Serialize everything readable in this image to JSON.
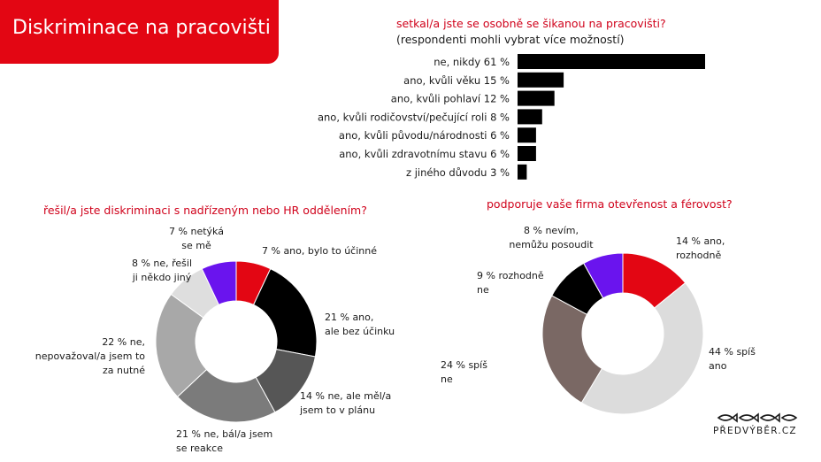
{
  "page": {
    "title": "Diskriminace na pracovišti"
  },
  "chart_data": [
    {
      "type": "bar",
      "orientation": "horizontal",
      "title": "setkal/a jste se osobně se šikanou na pracovišti?",
      "subtitle": "(respondenti mohli vybrat více možností)",
      "categories": [
        "ne, nikdy",
        "ano, kvůli věku",
        "ano, kvůli pohlaví",
        "ano, kvůli rodičovství/pečující roli",
        "ano, kvůli původu/národnosti",
        "ano, kvůli zdravotnímu stavu",
        "z jiného důvodu"
      ],
      "tick_labels": [
        "ne, nikdy 61 %",
        "ano, kvůli věku 15 %",
        "ano, kvůli pohlaví 12 %",
        "ano, kvůli rodičovství/pečující roli 8 %",
        "ano, kvůli původu/národnosti 6 %",
        "ano, kvůli zdravotnímu stavu 6 %",
        "z jiného důvodu 3 %"
      ],
      "values": [
        61,
        15,
        12,
        8,
        6,
        6,
        3
      ],
      "unit": "%",
      "color": "#000000"
    },
    {
      "type": "pie",
      "style": "donut",
      "title": "řešil/a jste diskriminaci s nadřízeným nebo HR oddělením?",
      "slices": [
        {
          "label": "7 % ano, bylo to účinné",
          "value": 7,
          "color": "#e30613"
        },
        {
          "label": "21 % ano, ale bez účinku",
          "value": 21,
          "color": "#000000"
        },
        {
          "label": "14 % ne, ale měl/a jsem to v plánu",
          "value": 14,
          "color": "#565656"
        },
        {
          "label": "21 % ne, bál/a jsem se reakce",
          "value": 21,
          "color": "#7b7b7b"
        },
        {
          "label": "22 % ne, nepovažoval/a jsem to za nutné",
          "value": 22,
          "color": "#a8a8a8"
        },
        {
          "label": "8 % ne, řešil ji někdo jiný",
          "value": 8,
          "color": "#dedede"
        },
        {
          "label": "7 % netýká se mě",
          "value": 7,
          "color": "#6a14ee"
        }
      ]
    },
    {
      "type": "pie",
      "style": "donut",
      "title": "podporuje vaše firma otevřenost a férovost?",
      "slices": [
        {
          "label": "14 % ano, rozhodně",
          "value": 14,
          "color": "#e30613"
        },
        {
          "label": "44 % spíš ano",
          "value": 44,
          "color": "#dcdcdc"
        },
        {
          "label": "24 % spíš ne",
          "value": 24,
          "color": "#7a6864"
        },
        {
          "label": "9 % rozhodně ne",
          "value": 9,
          "color": "#000000"
        },
        {
          "label": "8 % nevím, nemůžu posoudit",
          "value": 8,
          "color": "#6a14ee"
        }
      ]
    }
  ],
  "logo": {
    "text": "PŘEDVÝBĚR.CZ"
  }
}
